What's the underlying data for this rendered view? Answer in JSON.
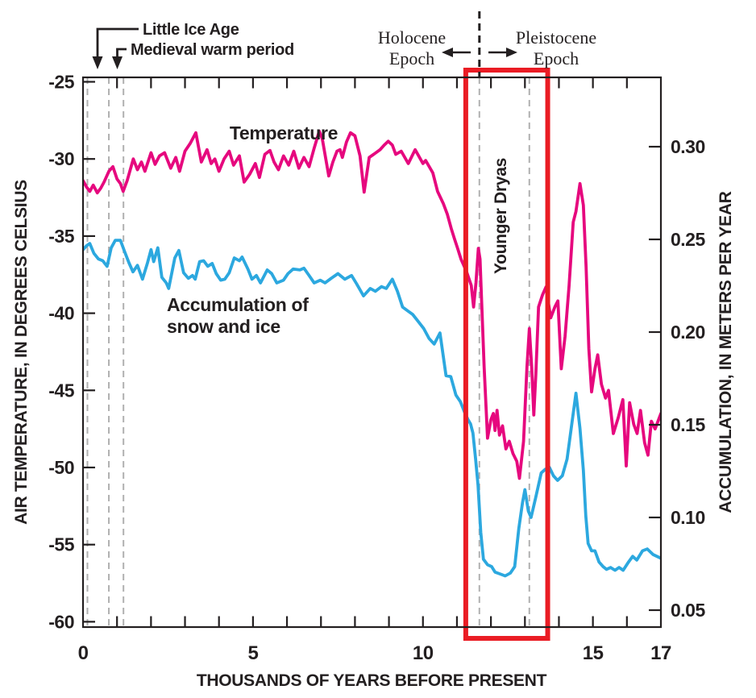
{
  "figure_type": "climate time-series chart",
  "colors": {
    "temperature": "#E6087E",
    "accumulation": "#2CA8DF",
    "highlight_box": "#EA1C24",
    "dashed_reference": "#B0B0B0",
    "epoch_divider": "#231F20",
    "text": "#231F20"
  },
  "annotations": {
    "little_ice_age": "Little Ice Age",
    "medieval_warm_period": "Medieval warm period",
    "holocene_line1": "Holocene",
    "holocene_line2": "Epoch",
    "pleistocene_line1": "Pleistocene",
    "pleistocene_line2": "Epoch",
    "younger_dryas": "Younger Dryas",
    "temperature_label": "Temperature",
    "accumulation_label_line1": "Accumulation of",
    "accumulation_label_line2": "snow and ice"
  },
  "chart_data": {
    "type": "line",
    "title": "",
    "grid": "off",
    "legend_position": "labels-on-chart",
    "x": {
      "label": "THOUSANDS OF YEARS BEFORE PRESENT",
      "range": [
        0,
        17
      ],
      "labeled_ticks": [
        0,
        5,
        10,
        15,
        17
      ],
      "minor_tick_step": 1
    },
    "y_left": {
      "label": "AIR TEMPERATURE, IN DEGREES CELSIUS",
      "range": [
        -60,
        -25
      ],
      "ticks": [
        -25,
        -30,
        -35,
        -40,
        -45,
        -50,
        -55,
        -60
      ]
    },
    "y_right": {
      "label": "ACCUMULATION, IN METERS PER YEAR",
      "range": [
        0.04,
        0.34
      ],
      "ticks": [
        "0.30",
        "0.25",
        "0.20",
        "0.15",
        "0.10",
        "0.05"
      ]
    },
    "dashed_vertical_lines_years": [
      0.13,
      0.76,
      1.19,
      11.66,
      13.13
    ],
    "epoch_boundary_year": 11.66,
    "younger_dryas_box_years": [
      11.26,
      13.67
    ],
    "series": [
      {
        "name": "Temperature",
        "axis": "left",
        "units": "degrees Celsius",
        "color": "#E6087E",
        "points": [
          [
            0.0,
            -31.4
          ],
          [
            0.1,
            -31.8
          ],
          [
            0.2,
            -32.1
          ],
          [
            0.3,
            -31.7
          ],
          [
            0.42,
            -32.2
          ],
          [
            0.52,
            -31.9
          ],
          [
            0.62,
            -31.5
          ],
          [
            0.76,
            -30.8
          ],
          [
            0.88,
            -30.5
          ],
          [
            1.0,
            -31.3
          ],
          [
            1.1,
            -31.6
          ],
          [
            1.18,
            -32.1
          ],
          [
            1.3,
            -31.4
          ],
          [
            1.48,
            -30.0
          ],
          [
            1.6,
            -30.7
          ],
          [
            1.72,
            -30.2
          ],
          [
            1.82,
            -30.8
          ],
          [
            2.0,
            -29.6
          ],
          [
            2.12,
            -30.35
          ],
          [
            2.25,
            -29.8
          ],
          [
            2.4,
            -29.6
          ],
          [
            2.58,
            -30.6
          ],
          [
            2.73,
            -29.9
          ],
          [
            2.84,
            -30.8
          ],
          [
            3.0,
            -29.5
          ],
          [
            3.15,
            -29.0
          ],
          [
            3.32,
            -28.3
          ],
          [
            3.48,
            -30.2
          ],
          [
            3.65,
            -29.4
          ],
          [
            3.77,
            -30.3
          ],
          [
            3.88,
            -30.0
          ],
          [
            4.0,
            -30.8
          ],
          [
            4.15,
            -30.0
          ],
          [
            4.3,
            -29.5
          ],
          [
            4.43,
            -30.4
          ],
          [
            4.6,
            -29.8
          ],
          [
            4.74,
            -31.5
          ],
          [
            4.9,
            -31.0
          ],
          [
            5.07,
            -30.3
          ],
          [
            5.19,
            -31.2
          ],
          [
            5.35,
            -29.7
          ],
          [
            5.5,
            -29.45
          ],
          [
            5.62,
            -30.2
          ],
          [
            5.75,
            -30.7
          ],
          [
            5.9,
            -29.8
          ],
          [
            6.05,
            -30.4
          ],
          [
            6.2,
            -29.5
          ],
          [
            6.35,
            -30.6
          ],
          [
            6.5,
            -29.9
          ],
          [
            6.65,
            -30.5
          ],
          [
            6.8,
            -29.3
          ],
          [
            6.95,
            -28.2
          ],
          [
            7.04,
            -28.7
          ],
          [
            7.23,
            -31.1
          ],
          [
            7.35,
            -30.2
          ],
          [
            7.47,
            -29.5
          ],
          [
            7.56,
            -29.4
          ],
          [
            7.63,
            -29.9
          ],
          [
            7.75,
            -28.9
          ],
          [
            7.87,
            -28.3
          ],
          [
            8.0,
            -28.5
          ],
          [
            8.15,
            -29.8
          ],
          [
            8.27,
            -32.15
          ],
          [
            8.42,
            -29.9
          ],
          [
            8.55,
            -29.7
          ],
          [
            8.74,
            -29.4
          ],
          [
            8.86,
            -29.1
          ],
          [
            8.98,
            -28.85
          ],
          [
            9.1,
            -29.1
          ],
          [
            9.2,
            -29.7
          ],
          [
            9.36,
            -29.5
          ],
          [
            9.57,
            -30.3
          ],
          [
            9.77,
            -29.4
          ],
          [
            10.0,
            -30.3
          ],
          [
            10.08,
            -30.1
          ],
          [
            10.29,
            -30.9
          ],
          [
            10.43,
            -32.1
          ],
          [
            10.6,
            -32.9
          ],
          [
            10.72,
            -33.6
          ],
          [
            10.83,
            -34.5
          ],
          [
            10.93,
            -35.2
          ],
          [
            11.02,
            -35.8
          ],
          [
            11.12,
            -36.5
          ],
          [
            11.28,
            -37.3
          ],
          [
            11.42,
            -38.2
          ],
          [
            11.49,
            -39.6
          ],
          [
            11.56,
            -38.0
          ],
          [
            11.63,
            -35.8
          ],
          [
            11.68,
            -36.5
          ],
          [
            11.73,
            -39.4
          ],
          [
            11.8,
            -43.5
          ],
          [
            11.9,
            -48.1
          ],
          [
            12.0,
            -46.9
          ],
          [
            12.07,
            -46.5
          ],
          [
            12.12,
            -47.6
          ],
          [
            12.18,
            -46.3
          ],
          [
            12.25,
            -47.9
          ],
          [
            12.34,
            -47.3
          ],
          [
            12.44,
            -48.8
          ],
          [
            12.54,
            -48.3
          ],
          [
            12.65,
            -49.1
          ],
          [
            12.76,
            -49.6
          ],
          [
            12.84,
            -50.7
          ],
          [
            12.96,
            -48.3
          ],
          [
            13.06,
            -43.5
          ],
          [
            13.13,
            -41.0
          ],
          [
            13.2,
            -43.5
          ],
          [
            13.26,
            -46.6
          ],
          [
            13.32,
            -44.0
          ],
          [
            13.4,
            -39.6
          ],
          [
            13.52,
            -38.8
          ],
          [
            13.62,
            -38.3
          ],
          [
            13.76,
            -40.3
          ],
          [
            13.88,
            -39.6
          ],
          [
            13.97,
            -39.2
          ],
          [
            14.07,
            -43.6
          ],
          [
            14.18,
            -41.5
          ],
          [
            14.3,
            -38.2
          ],
          [
            14.42,
            -34.1
          ],
          [
            14.5,
            -33.4
          ],
          [
            14.62,
            -31.6
          ],
          [
            14.72,
            -33.0
          ],
          [
            14.8,
            -37.0
          ],
          [
            14.88,
            -42.3
          ],
          [
            14.96,
            -45.1
          ],
          [
            15.06,
            -43.6
          ],
          [
            15.14,
            -42.7
          ],
          [
            15.25,
            -44.6
          ],
          [
            15.37,
            -45.5
          ],
          [
            15.46,
            -45.0
          ],
          [
            15.6,
            -47.8
          ],
          [
            15.74,
            -46.8
          ],
          [
            15.88,
            -45.6
          ],
          [
            15.98,
            -49.9
          ],
          [
            16.08,
            -45.8
          ],
          [
            16.2,
            -47.2
          ],
          [
            16.3,
            -47.8
          ],
          [
            16.4,
            -46.3
          ],
          [
            16.52,
            -48.4
          ],
          [
            16.62,
            -49.2
          ],
          [
            16.72,
            -47.0
          ],
          [
            16.83,
            -47.5
          ],
          [
            17.0,
            -46.5
          ]
        ]
      },
      {
        "name": "Accumulation of snow and ice",
        "axis": "right",
        "units": "meters per year",
        "color": "#2CA8DF",
        "points": [
          [
            0.0,
            0.2445
          ],
          [
            0.1,
            0.2465
          ],
          [
            0.2,
            0.2478
          ],
          [
            0.32,
            0.2425
          ],
          [
            0.45,
            0.2395
          ],
          [
            0.58,
            0.2385
          ],
          [
            0.71,
            0.2355
          ],
          [
            0.83,
            0.2455
          ],
          [
            0.95,
            0.2495
          ],
          [
            1.1,
            0.2495
          ],
          [
            1.22,
            0.2435
          ],
          [
            1.35,
            0.2375
          ],
          [
            1.47,
            0.2325
          ],
          [
            1.6,
            0.236
          ],
          [
            1.75,
            0.2285
          ],
          [
            1.9,
            0.2375
          ],
          [
            2.0,
            0.2445
          ],
          [
            2.08,
            0.238
          ],
          [
            2.2,
            0.2455
          ],
          [
            2.32,
            0.2295
          ],
          [
            2.45,
            0.2265
          ],
          [
            2.52,
            0.2235
          ],
          [
            2.7,
            0.24
          ],
          [
            2.82,
            0.244
          ],
          [
            2.96,
            0.232
          ],
          [
            3.1,
            0.229
          ],
          [
            3.22,
            0.2305
          ],
          [
            3.3,
            0.2285
          ],
          [
            3.43,
            0.238
          ],
          [
            3.55,
            0.2385
          ],
          [
            3.67,
            0.2355
          ],
          [
            3.8,
            0.237
          ],
          [
            3.92,
            0.2315
          ],
          [
            4.05,
            0.228
          ],
          [
            4.17,
            0.2285
          ],
          [
            4.3,
            0.232
          ],
          [
            4.45,
            0.24
          ],
          [
            4.6,
            0.2385
          ],
          [
            4.68,
            0.2405
          ],
          [
            4.85,
            0.234
          ],
          [
            4.97,
            0.2285
          ],
          [
            5.1,
            0.2305
          ],
          [
            5.22,
            0.2265
          ],
          [
            5.42,
            0.2335
          ],
          [
            5.55,
            0.2315
          ],
          [
            5.7,
            0.2265
          ],
          [
            5.9,
            0.228
          ],
          [
            6.03,
            0.2315
          ],
          [
            6.18,
            0.234
          ],
          [
            6.38,
            0.2335
          ],
          [
            6.5,
            0.2345
          ],
          [
            6.65,
            0.2305
          ],
          [
            6.8,
            0.2265
          ],
          [
            6.98,
            0.228
          ],
          [
            7.12,
            0.2265
          ],
          [
            7.3,
            0.229
          ],
          [
            7.5,
            0.2315
          ],
          [
            7.7,
            0.2285
          ],
          [
            7.9,
            0.2305
          ],
          [
            8.05,
            0.226
          ],
          [
            8.25,
            0.2195
          ],
          [
            8.45,
            0.2235
          ],
          [
            8.6,
            0.222
          ],
          [
            8.78,
            0.2245
          ],
          [
            8.92,
            0.2235
          ],
          [
            9.1,
            0.2285
          ],
          [
            9.25,
            0.222
          ],
          [
            9.4,
            0.2135
          ],
          [
            9.55,
            0.2115
          ],
          [
            9.7,
            0.2095
          ],
          [
            9.85,
            0.206
          ],
          [
            10.02,
            0.202
          ],
          [
            10.18,
            0.1965
          ],
          [
            10.33,
            0.1935
          ],
          [
            10.5,
            0.1995
          ],
          [
            10.68,
            0.1765
          ],
          [
            10.82,
            0.176
          ],
          [
            10.97,
            0.166
          ],
          [
            11.1,
            0.1625
          ],
          [
            11.22,
            0.157
          ],
          [
            11.32,
            0.153
          ],
          [
            11.4,
            0.1505
          ],
          [
            11.47,
            0.1455
          ],
          [
            11.55,
            0.1315
          ],
          [
            11.62,
            0.1175
          ],
          [
            11.7,
            0.092
          ],
          [
            11.78,
            0.0775
          ],
          [
            11.9,
            0.0745
          ],
          [
            12.02,
            0.0735
          ],
          [
            12.12,
            0.0705
          ],
          [
            12.27,
            0.0695
          ],
          [
            12.42,
            0.0685
          ],
          [
            12.57,
            0.07
          ],
          [
            12.7,
            0.0735
          ],
          [
            12.82,
            0.094
          ],
          [
            12.93,
            0.108
          ],
          [
            13.0,
            0.115
          ],
          [
            13.1,
            0.1035
          ],
          [
            13.18,
            0.1
          ],
          [
            13.32,
            0.111
          ],
          [
            13.48,
            0.124
          ],
          [
            13.6,
            0.126
          ],
          [
            13.72,
            0.127
          ],
          [
            13.84,
            0.1225
          ],
          [
            13.96,
            0.12
          ],
          [
            14.1,
            0.1225
          ],
          [
            14.24,
            0.1315
          ],
          [
            14.36,
            0.148
          ],
          [
            14.5,
            0.167
          ],
          [
            14.62,
            0.148
          ],
          [
            14.72,
            0.1255
          ],
          [
            14.79,
            0.101
          ],
          [
            14.86,
            0.086
          ],
          [
            14.96,
            0.082
          ],
          [
            15.06,
            0.082
          ],
          [
            15.18,
            0.076
          ],
          [
            15.3,
            0.0735
          ],
          [
            15.4,
            0.072
          ],
          [
            15.52,
            0.073
          ],
          [
            15.65,
            0.0715
          ],
          [
            15.77,
            0.073
          ],
          [
            15.89,
            0.0715
          ],
          [
            16.05,
            0.076
          ],
          [
            16.17,
            0.079
          ],
          [
            16.29,
            0.077
          ],
          [
            16.46,
            0.082
          ],
          [
            16.6,
            0.083
          ],
          [
            16.77,
            0.08
          ],
          [
            17.0,
            0.078
          ]
        ]
      }
    ]
  }
}
